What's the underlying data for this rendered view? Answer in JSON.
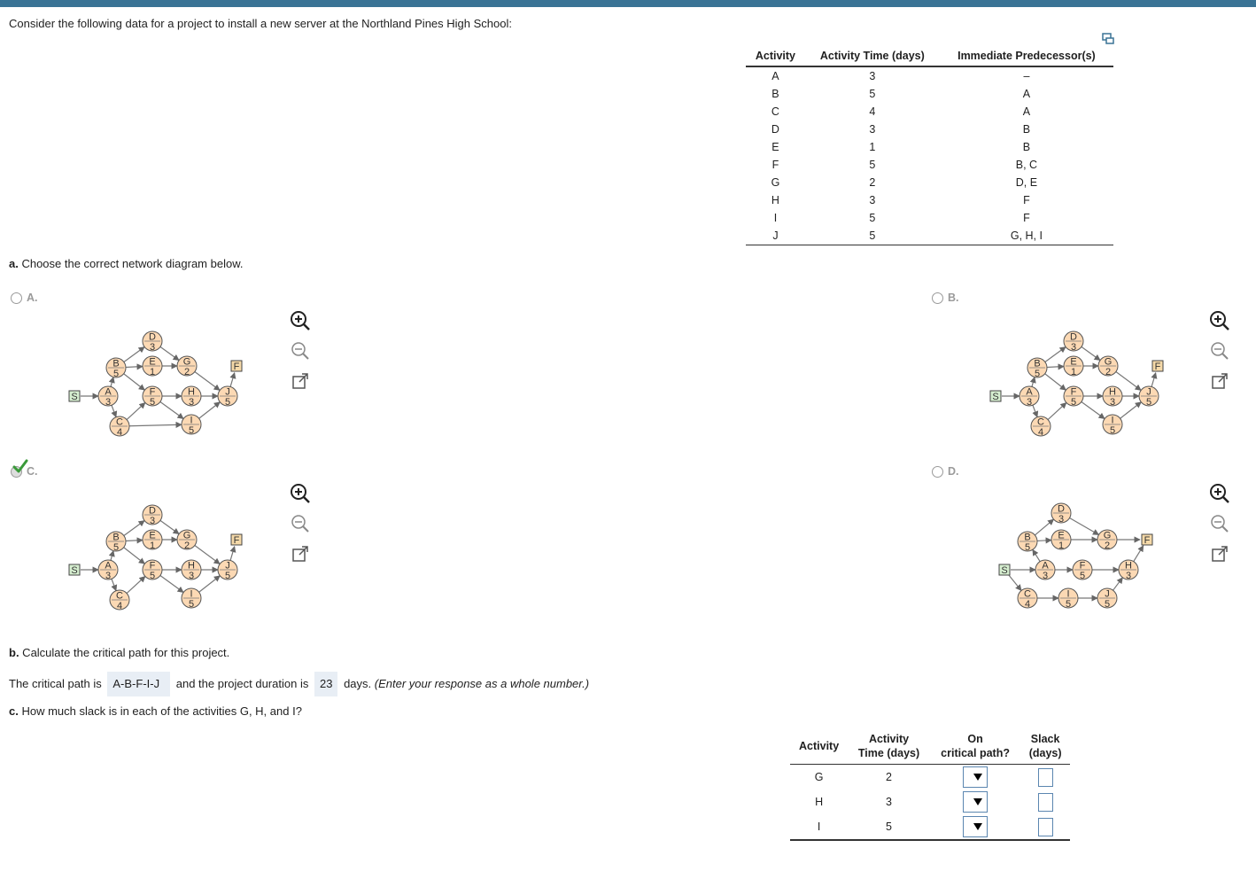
{
  "question": {
    "intro": "Consider the following data for a project to install a new server at the Northland Pines High School:",
    "table": {
      "headers": [
        "Activity",
        "Activity Time (days)",
        "Immediate Predecessor(s)"
      ],
      "rows": [
        [
          "A",
          "3",
          "–"
        ],
        [
          "B",
          "5",
          "A"
        ],
        [
          "C",
          "4",
          "A"
        ],
        [
          "D",
          "3",
          "B"
        ],
        [
          "E",
          "1",
          "B"
        ],
        [
          "F",
          "5",
          "B, C"
        ],
        [
          "G",
          "2",
          "D, E"
        ],
        [
          "H",
          "3",
          "F"
        ],
        [
          "I",
          "5",
          "F"
        ],
        [
          "J",
          "5",
          "G, H, I"
        ]
      ]
    }
  },
  "part_a": {
    "prompt_bold": "a.",
    "prompt_text": " Choose the correct network diagram below.",
    "options": [
      {
        "label": "A.",
        "selected": false
      },
      {
        "label": "B.",
        "selected": false
      },
      {
        "label": "C.",
        "selected": true
      },
      {
        "label": "D.",
        "selected": false
      }
    ],
    "node_labels": {
      "start": "S",
      "finish": "F"
    },
    "nodes": [
      {
        "letter": "A",
        "time": "3"
      },
      {
        "letter": "B",
        "time": "5"
      },
      {
        "letter": "C",
        "time": "4"
      },
      {
        "letter": "D",
        "time": "3"
      },
      {
        "letter": "E",
        "time": "1"
      },
      {
        "letter": "F",
        "time": "5"
      },
      {
        "letter": "G",
        "time": "2"
      },
      {
        "letter": "H",
        "time": "3"
      },
      {
        "letter": "I",
        "time": "5"
      },
      {
        "letter": "J",
        "time": "5"
      }
    ]
  },
  "part_b": {
    "prompt_bold": "b.",
    "prompt_text": " Calculate the critical path for this project.",
    "sentence_start": "The critical path is",
    "critical_path": "A-B-F-I-J",
    "sentence_mid": "and the project duration is",
    "duration": "23",
    "sentence_end": "days.",
    "hint": "(Enter your response as a whole number.)"
  },
  "part_c": {
    "prompt_bold": "c.",
    "prompt_text": " How much slack is in each of the activities G, H, and I?",
    "headers": {
      "activity": "Activity",
      "time_line1": "Activity",
      "time_line2": "Time (days)",
      "critical_line1": "On",
      "critical_line2": "critical path?",
      "slack_line1": "Slack",
      "slack_line2": "(days)"
    },
    "rows": [
      {
        "activity": "G",
        "time": "2",
        "on_critical": "",
        "slack": ""
      },
      {
        "activity": "H",
        "time": "3",
        "on_critical": "",
        "slack": ""
      },
      {
        "activity": "I",
        "time": "5",
        "on_critical": "",
        "slack": ""
      }
    ]
  },
  "colors": {
    "accent": "#3a7395",
    "node_fill": "#fcd9b4",
    "start_fill": "#d6efd0",
    "finish_fill": "#f5d9a8",
    "check": "#3a9a3a"
  }
}
